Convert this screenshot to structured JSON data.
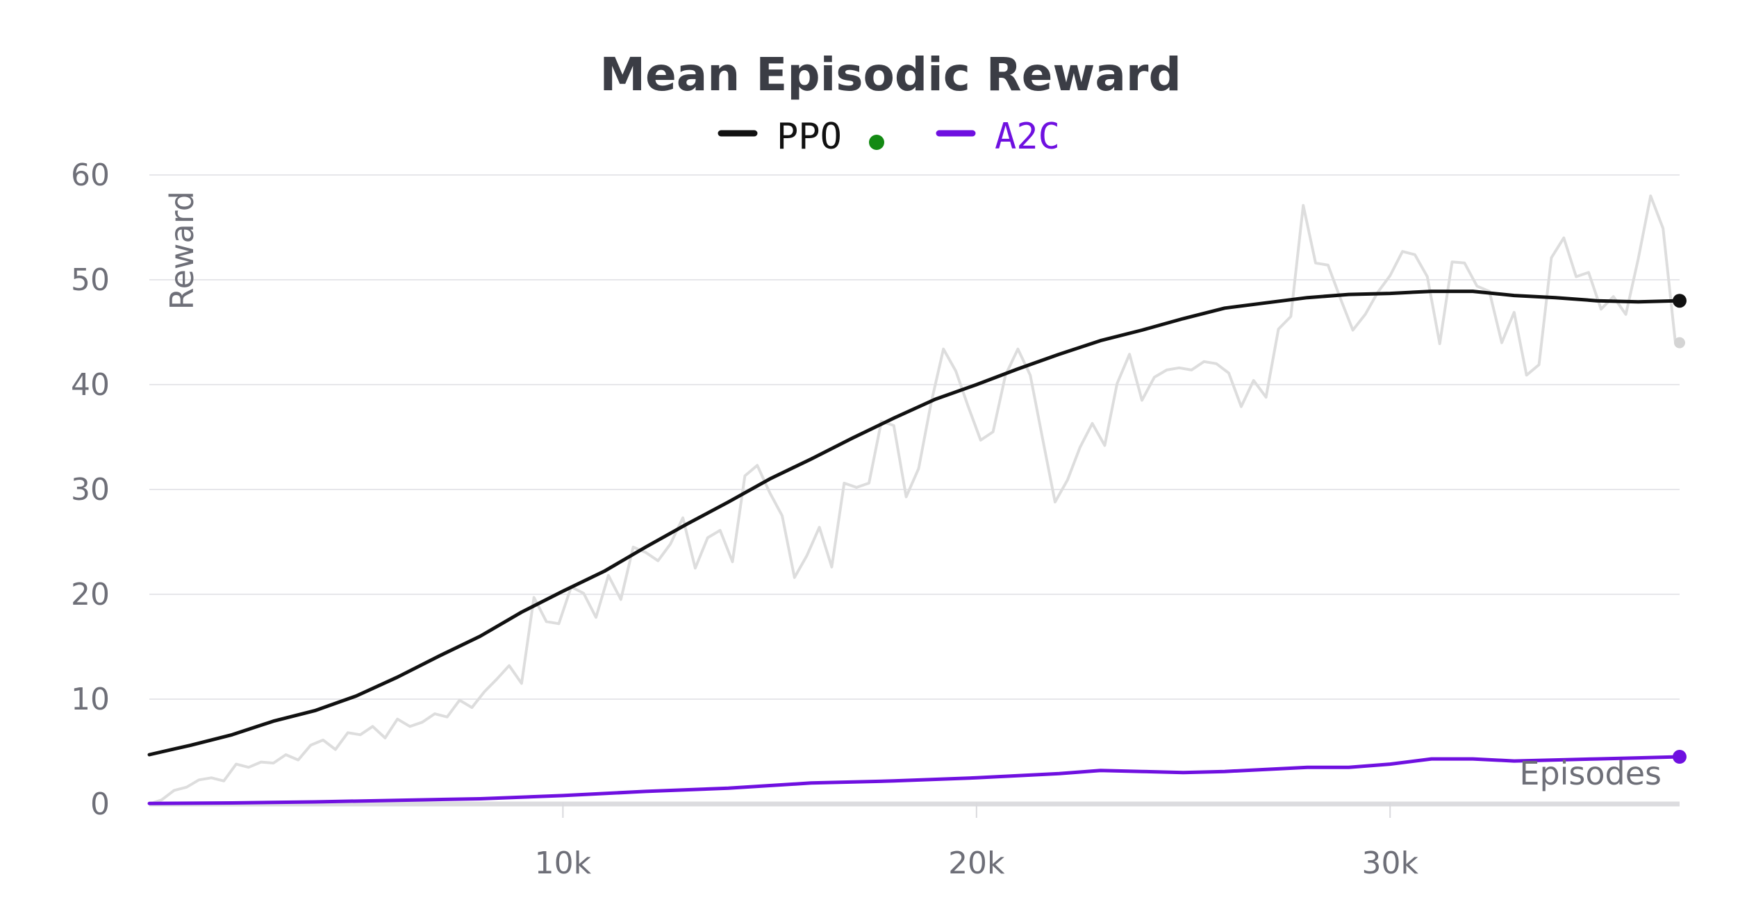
{
  "chart_data": {
    "type": "line",
    "title": "Mean Episodic Reward",
    "xlabel": "Episodes",
    "ylabel": "Reward",
    "xlim": [
      0,
      37000
    ],
    "ylim": [
      0,
      60
    ],
    "x_ticks": [
      10000,
      20000,
      30000
    ],
    "x_tick_labels": [
      "10k",
      "20k",
      "30k"
    ],
    "y_ticks": [
      0,
      10,
      20,
      30,
      40,
      50,
      60
    ],
    "y_tick_labels": [
      "0",
      "10",
      "20",
      "30",
      "40",
      "50",
      "60"
    ],
    "grid": "horizontal",
    "legend_position": "top-center",
    "series": [
      {
        "name": "PPO",
        "color": "#111111",
        "raw_color": "#dddddd",
        "status_dot_color": "#138a13",
        "smoothed": [
          [
            0,
            4.7
          ],
          [
            1000,
            5.6
          ],
          [
            2000,
            6.6
          ],
          [
            3000,
            7.9
          ],
          [
            4000,
            8.9
          ],
          [
            5000,
            10.3
          ],
          [
            6000,
            12.1
          ],
          [
            7000,
            14.1
          ],
          [
            8000,
            16.0
          ],
          [
            9000,
            18.3
          ],
          [
            10000,
            20.3
          ],
          [
            11000,
            22.2
          ],
          [
            12000,
            24.5
          ],
          [
            13000,
            26.7
          ],
          [
            14000,
            28.8
          ],
          [
            15000,
            31.0
          ],
          [
            16000,
            32.9
          ],
          [
            17000,
            34.9
          ],
          [
            18000,
            36.8
          ],
          [
            19000,
            38.6
          ],
          [
            20000,
            40.0
          ],
          [
            21000,
            41.5
          ],
          [
            22000,
            42.9
          ],
          [
            23000,
            44.2
          ],
          [
            24000,
            45.2
          ],
          [
            25000,
            46.3
          ],
          [
            26000,
            47.3
          ],
          [
            27000,
            47.8
          ],
          [
            28000,
            48.3
          ],
          [
            29000,
            48.6
          ],
          [
            30000,
            48.7
          ],
          [
            31000,
            48.9
          ],
          [
            32000,
            48.9
          ],
          [
            33000,
            48.5
          ],
          [
            34000,
            48.3
          ],
          [
            35000,
            48.0
          ],
          [
            36000,
            47.9
          ],
          [
            37000,
            48.0
          ]
        ],
        "raw": [
          [
            0,
            0
          ],
          [
            300,
            0.4
          ],
          [
            600,
            1.3
          ],
          [
            900,
            1.6
          ],
          [
            1200,
            2.3
          ],
          [
            1500,
            2.5
          ],
          [
            1800,
            2.2
          ],
          [
            2100,
            3.8
          ],
          [
            2400,
            3.5
          ],
          [
            2700,
            4.0
          ],
          [
            3000,
            3.9
          ],
          [
            3300,
            4.7
          ],
          [
            3600,
            4.2
          ],
          [
            3900,
            5.6
          ],
          [
            4200,
            6.1
          ],
          [
            4500,
            5.2
          ],
          [
            4800,
            6.8
          ],
          [
            5100,
            6.6
          ],
          [
            5400,
            7.4
          ],
          [
            5700,
            6.3
          ],
          [
            6000,
            8.1
          ],
          [
            6300,
            7.4
          ],
          [
            6600,
            7.8
          ],
          [
            6900,
            8.6
          ],
          [
            7200,
            8.3
          ],
          [
            7500,
            9.9
          ],
          [
            7800,
            9.2
          ],
          [
            8100,
            10.7
          ],
          [
            8400,
            11.9
          ],
          [
            8700,
            13.2
          ],
          [
            9000,
            11.5
          ],
          [
            9300,
            19.7
          ],
          [
            9600,
            17.4
          ],
          [
            9900,
            17.2
          ],
          [
            10200,
            20.7
          ],
          [
            10500,
            20.1
          ],
          [
            10800,
            17.8
          ],
          [
            11100,
            21.8
          ],
          [
            11400,
            19.5
          ],
          [
            11700,
            24.5
          ],
          [
            12000,
            24.0
          ],
          [
            12300,
            23.2
          ],
          [
            12600,
            24.8
          ],
          [
            12900,
            27.3
          ],
          [
            13200,
            22.5
          ],
          [
            13500,
            25.4
          ],
          [
            13800,
            26.1
          ],
          [
            14100,
            23.1
          ],
          [
            14400,
            31.3
          ],
          [
            14700,
            32.3
          ],
          [
            15000,
            29.7
          ],
          [
            15300,
            27.5
          ],
          [
            15600,
            21.6
          ],
          [
            15900,
            23.7
          ],
          [
            16200,
            26.4
          ],
          [
            16500,
            22.6
          ],
          [
            16800,
            30.6
          ],
          [
            17100,
            30.2
          ],
          [
            17400,
            30.6
          ],
          [
            17700,
            36.5
          ],
          [
            18000,
            36.1
          ],
          [
            18300,
            29.3
          ],
          [
            18600,
            32.0
          ],
          [
            18900,
            38.2
          ],
          [
            19200,
            43.4
          ],
          [
            19500,
            41.3
          ],
          [
            19800,
            37.9
          ],
          [
            20100,
            34.7
          ],
          [
            20400,
            35.5
          ],
          [
            20700,
            40.9
          ],
          [
            21000,
            43.4
          ],
          [
            21300,
            40.9
          ],
          [
            21600,
            34.8
          ],
          [
            21900,
            28.8
          ],
          [
            22200,
            30.9
          ],
          [
            22500,
            34.0
          ],
          [
            22800,
            36.3
          ],
          [
            23100,
            34.2
          ],
          [
            23400,
            40.1
          ],
          [
            23700,
            42.9
          ],
          [
            24000,
            38.5
          ],
          [
            24300,
            40.7
          ],
          [
            24600,
            41.4
          ],
          [
            24900,
            41.6
          ],
          [
            25200,
            41.4
          ],
          [
            25500,
            42.2
          ],
          [
            25800,
            42.0
          ],
          [
            26100,
            41.1
          ],
          [
            26400,
            37.9
          ],
          [
            26700,
            40.4
          ],
          [
            27000,
            38.8
          ],
          [
            27300,
            45.3
          ],
          [
            27600,
            46.5
          ],
          [
            27900,
            57.1
          ],
          [
            28200,
            51.6
          ],
          [
            28500,
            51.4
          ],
          [
            28800,
            48.2
          ],
          [
            29100,
            45.2
          ],
          [
            29400,
            46.7
          ],
          [
            29700,
            48.8
          ],
          [
            30000,
            50.4
          ],
          [
            30300,
            52.7
          ],
          [
            30600,
            52.4
          ],
          [
            30900,
            50.3
          ],
          [
            31200,
            43.9
          ],
          [
            31500,
            51.7
          ],
          [
            31800,
            51.6
          ],
          [
            32100,
            49.4
          ],
          [
            32400,
            48.9
          ],
          [
            32700,
            44.0
          ],
          [
            33000,
            46.9
          ],
          [
            33300,
            40.9
          ],
          [
            33600,
            41.9
          ],
          [
            33900,
            52.1
          ],
          [
            34200,
            54.0
          ],
          [
            34500,
            50.3
          ],
          [
            34800,
            50.7
          ],
          [
            35100,
            47.2
          ],
          [
            35400,
            48.4
          ],
          [
            35700,
            46.7
          ],
          [
            36000,
            52.0
          ],
          [
            36300,
            58.0
          ],
          [
            36600,
            54.9
          ],
          [
            36900,
            44.0
          ]
        ],
        "last_raw": [
          37000,
          44.0
        ]
      },
      {
        "name": "A2C",
        "color": "#6f10e0",
        "raw_color": "#e6d8f8",
        "smoothed": [
          [
            0,
            0.05
          ],
          [
            2000,
            0.1
          ],
          [
            4000,
            0.2
          ],
          [
            6000,
            0.35
          ],
          [
            8000,
            0.5
          ],
          [
            10000,
            0.8
          ],
          [
            12000,
            1.2
          ],
          [
            14000,
            1.5
          ],
          [
            16000,
            2.0
          ],
          [
            18000,
            2.2
          ],
          [
            20000,
            2.5
          ],
          [
            22000,
            2.9
          ],
          [
            23000,
            3.2
          ],
          [
            24000,
            3.1
          ],
          [
            25000,
            3.0
          ],
          [
            26000,
            3.1
          ],
          [
            27000,
            3.3
          ],
          [
            28000,
            3.5
          ],
          [
            29000,
            3.5
          ],
          [
            30000,
            3.8
          ],
          [
            31000,
            4.3
          ],
          [
            32000,
            4.3
          ],
          [
            33000,
            4.1
          ],
          [
            34000,
            4.2
          ],
          [
            35000,
            4.3
          ],
          [
            36000,
            4.4
          ],
          [
            37000,
            4.5
          ]
        ]
      }
    ]
  }
}
